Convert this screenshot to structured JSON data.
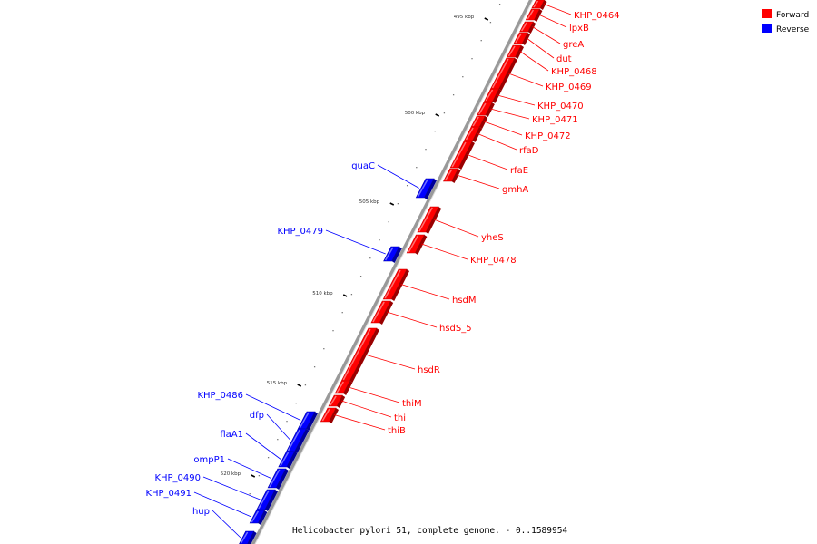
{
  "caption": "Helicobacter pylori 51, complete genome. - 0..1589954",
  "legend": [
    {
      "label": "Forward",
      "color": "#ff0000"
    },
    {
      "label": "Reverse",
      "color": "#0000ff"
    }
  ],
  "colors": {
    "forward": "#ff0000",
    "reverse": "#0000ff",
    "backbone": "#999999"
  },
  "ticks": [
    {
      "label": "495 kbp"
    },
    {
      "label": "500 kbp"
    },
    {
      "label": "505 kbp"
    },
    {
      "label": "510 kbp"
    },
    {
      "label": "515 kbp"
    },
    {
      "label": "520 kbp"
    }
  ],
  "genes": [
    {
      "name": "KHP_0464",
      "strand": "forward"
    },
    {
      "name": "lpxB",
      "strand": "forward"
    },
    {
      "name": "greA",
      "strand": "forward"
    },
    {
      "name": "dut",
      "strand": "forward"
    },
    {
      "name": "KHP_0468",
      "strand": "forward"
    },
    {
      "name": "KHP_0469",
      "strand": "forward"
    },
    {
      "name": "KHP_0470",
      "strand": "forward"
    },
    {
      "name": "KHP_0471",
      "strand": "forward"
    },
    {
      "name": "KHP_0472",
      "strand": "forward"
    },
    {
      "name": "rfaD",
      "strand": "forward"
    },
    {
      "name": "rfaE",
      "strand": "forward"
    },
    {
      "name": "gmhA",
      "strand": "forward"
    },
    {
      "name": "guaC",
      "strand": "reverse"
    },
    {
      "name": "yheS",
      "strand": "forward"
    },
    {
      "name": "KHP_0478",
      "strand": "forward"
    },
    {
      "name": "KHP_0479",
      "strand": "reverse"
    },
    {
      "name": "hsdM",
      "strand": "forward"
    },
    {
      "name": "hsdS_5",
      "strand": "forward"
    },
    {
      "name": "hsdR",
      "strand": "forward"
    },
    {
      "name": "thiM",
      "strand": "forward"
    },
    {
      "name": "thi",
      "strand": "forward"
    },
    {
      "name": "thiB",
      "strand": "forward"
    },
    {
      "name": "KHP_0486",
      "strand": "reverse"
    },
    {
      "name": "dfp",
      "strand": "reverse"
    },
    {
      "name": "flaA1",
      "strand": "reverse"
    },
    {
      "name": "ompP1",
      "strand": "reverse"
    },
    {
      "name": "KHP_0490",
      "strand": "reverse"
    },
    {
      "name": "KHP_0491",
      "strand": "reverse"
    },
    {
      "name": "hup",
      "strand": "reverse"
    }
  ]
}
